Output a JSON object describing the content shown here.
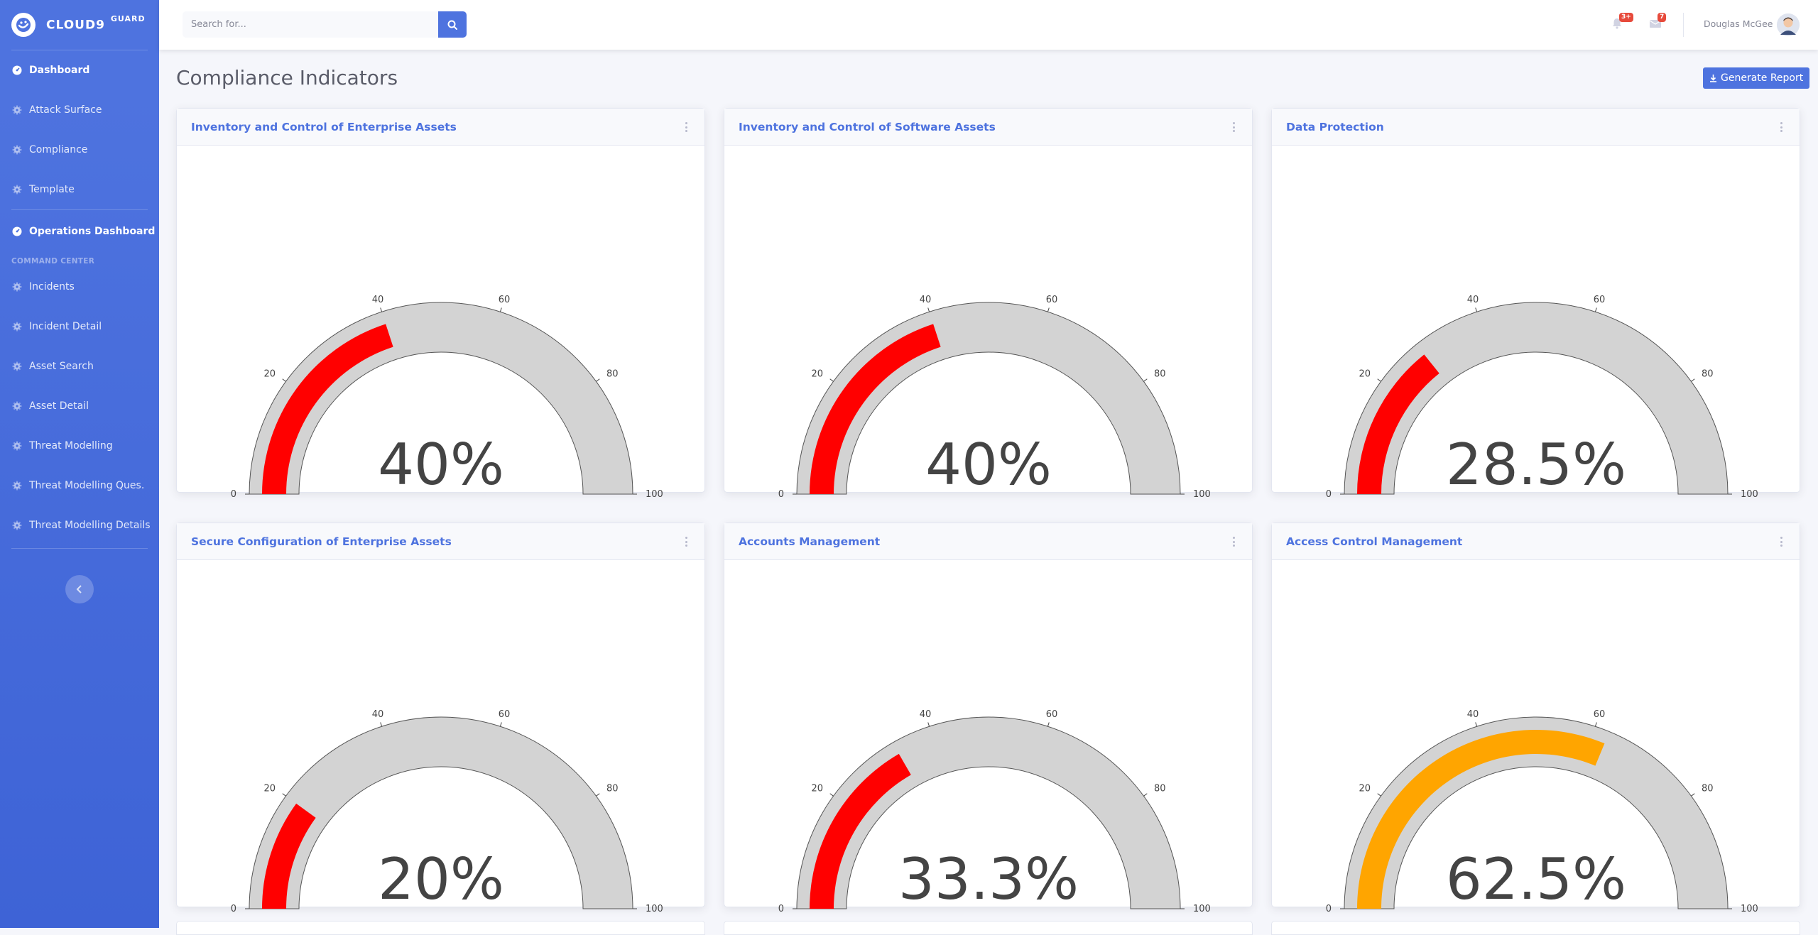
{
  "brand": {
    "name": "CLOUD9",
    "suffix": "GUARD"
  },
  "sidebar": {
    "items_top": [
      {
        "label": "Dashboard",
        "icon": "dashboard-icon",
        "active": true
      },
      {
        "label": "Attack Surface",
        "icon": "gear-icon",
        "active": false
      },
      {
        "label": "Compliance",
        "icon": "gear-icon",
        "active": false
      },
      {
        "label": "Template",
        "icon": "gear-icon",
        "active": false
      }
    ],
    "ops_item": {
      "label": "Operations Dashboard",
      "icon": "dashboard-icon"
    },
    "heading": "COMMAND CENTER",
    "items_cmd": [
      {
        "label": "Incidents",
        "icon": "gear-icon"
      },
      {
        "label": "Incident Detail",
        "icon": "gear-icon"
      },
      {
        "label": "Asset Search",
        "icon": "gear-icon"
      },
      {
        "label": "Asset Detail",
        "icon": "gear-icon"
      },
      {
        "label": "Threat Modelling",
        "icon": "gear-icon"
      },
      {
        "label": "Threat Modelling Ques.",
        "icon": "gear-icon"
      },
      {
        "label": "Threat Modelling Details",
        "icon": "gear-icon"
      }
    ]
  },
  "topbar": {
    "search_placeholder": "Search for...",
    "alerts_badge": "3+",
    "messages_badge": "7",
    "user_name": "Douglas McGee"
  },
  "page": {
    "title": "Compliance Indicators",
    "generate_label": "Generate Report"
  },
  "colors": {
    "primary": "#4e73df",
    "gauge_track": "#d3d3d3",
    "low": "#ff0000",
    "medium": "#ffa500"
  },
  "gauge_ticks": [
    "0",
    "20",
    "40",
    "60",
    "80",
    "100"
  ],
  "cards": [
    {
      "title": "Inventory and Control of Enterprise Assets",
      "value": 40,
      "label": "40%",
      "color": "#ff0000"
    },
    {
      "title": "Inventory and Control of Software Assets",
      "value": 40,
      "label": "40%",
      "color": "#ff0000"
    },
    {
      "title": "Data Protection",
      "value": 28.5,
      "label": "28.5%",
      "color": "#ff0000"
    },
    {
      "title": "Secure Configuration of Enterprise Assets",
      "value": 20,
      "label": "20%",
      "color": "#ff0000"
    },
    {
      "title": "Accounts Management",
      "value": 33.3,
      "label": "33.3%",
      "color": "#ff0000"
    },
    {
      "title": "Access Control Management",
      "value": 62.5,
      "label": "62.5%",
      "color": "#ffa500"
    }
  ],
  "chart_data": [
    {
      "type": "gauge",
      "title": "Inventory and Control of Enterprise Assets",
      "value": 40,
      "range": [
        0,
        100
      ],
      "ticks": [
        0,
        20,
        40,
        60,
        80,
        100
      ]
    },
    {
      "type": "gauge",
      "title": "Inventory and Control of Software Assets",
      "value": 40,
      "range": [
        0,
        100
      ],
      "ticks": [
        0,
        20,
        40,
        60,
        80,
        100
      ]
    },
    {
      "type": "gauge",
      "title": "Data Protection",
      "value": 28.5,
      "range": [
        0,
        100
      ],
      "ticks": [
        0,
        20,
        40,
        60,
        80,
        100
      ]
    },
    {
      "type": "gauge",
      "title": "Secure Configuration of Enterprise Assets",
      "value": 20,
      "range": [
        0,
        100
      ],
      "ticks": [
        0,
        20,
        40,
        60,
        80,
        100
      ]
    },
    {
      "type": "gauge",
      "title": "Accounts Management",
      "value": 33.3,
      "range": [
        0,
        100
      ],
      "ticks": [
        0,
        20,
        40,
        60,
        80,
        100
      ]
    },
    {
      "type": "gauge",
      "title": "Access Control Management",
      "value": 62.5,
      "range": [
        0,
        100
      ],
      "ticks": [
        0,
        20,
        40,
        60,
        80,
        100
      ]
    }
  ]
}
